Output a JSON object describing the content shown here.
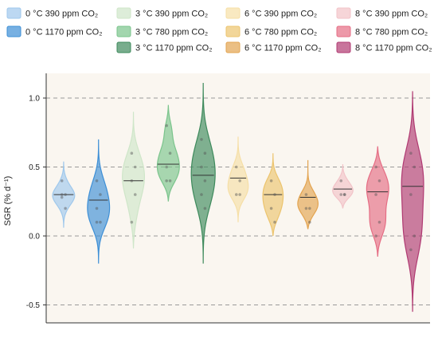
{
  "chart_data": {
    "type": "violin",
    "ylabel": "SGR (% d⁻¹)",
    "ylim": [
      -0.55,
      1.12
    ],
    "yticks": [
      {
        "value": -0.5,
        "label": "-0.5"
      },
      {
        "value": 0.0,
        "label": "0.0"
      },
      {
        "value": 0.5,
        "label": "0.5"
      },
      {
        "value": 1.0,
        "label": "1.0"
      }
    ],
    "grid": {
      "y_dashed": true
    },
    "background": "#faf6f0",
    "legend_position": "top",
    "series": [
      {
        "name": "0 °C 390 ppm CO₂",
        "color": "#9fc8ec",
        "median": 0.3,
        "range": [
          0.06,
          0.54
        ],
        "points": [
          0.3,
          0.3,
          0.28,
          0.2,
          0.4
        ]
      },
      {
        "name": "0 °C 1170 ppm CO₂",
        "color": "#3d8fd6",
        "median": 0.26,
        "range": [
          -0.2,
          0.7
        ],
        "points": [
          0.4,
          0.3,
          0.2,
          0.1,
          0.1
        ]
      },
      {
        "name": "3 °C 390 ppm CO₂",
        "color": "#cfe6c9",
        "median": 0.4,
        "range": [
          -0.09,
          0.9
        ],
        "points": [
          0.6,
          0.5,
          0.4,
          0.3,
          0.1
        ]
      },
      {
        "name": "3 °C 780 ppm CO₂",
        "color": "#7bc48c",
        "median": 0.52,
        "range": [
          0.25,
          0.95
        ],
        "points": [
          0.8,
          0.6,
          0.5,
          0.4,
          0.4
        ]
      },
      {
        "name": "3 °C 1170 ppm CO₂",
        "color": "#3e8a5c",
        "median": 0.44,
        "range": [
          -0.2,
          1.11
        ],
        "points": [
          0.7,
          0.6,
          0.5,
          0.4,
          0.3,
          0.2
        ]
      },
      {
        "name": "6 °C 390 ppm CO₂",
        "color": "#f6dfa6",
        "median": 0.42,
        "range": [
          0.1,
          0.72
        ],
        "points": [
          0.5,
          0.4,
          0.3,
          0.3
        ]
      },
      {
        "name": "6 °C 780 ppm CO₂",
        "color": "#ecc46e",
        "median": 0.3,
        "range": [
          0.0,
          0.6
        ],
        "points": [
          0.4,
          0.3,
          0.2,
          0.1
        ]
      },
      {
        "name": "6 °C 1170 ppm CO₂",
        "color": "#e3a450",
        "median": 0.28,
        "range": [
          0.05,
          0.55
        ],
        "points": [
          0.3,
          0.2,
          0.2,
          0.1
        ]
      },
      {
        "name": "8 °C 390 ppm CO₂",
        "color": "#f2c3c8",
        "median": 0.34,
        "range": [
          0.2,
          0.52
        ],
        "points": [
          0.4,
          0.3,
          0.3,
          0.3
        ]
      },
      {
        "name": "8 °C 780 ppm CO₂",
        "color": "#e56d84",
        "median": 0.32,
        "range": [
          -0.15,
          0.65
        ],
        "points": [
          0.5,
          0.4,
          0.3,
          0.1,
          0.0
        ]
      },
      {
        "name": "8 °C 1170 ppm CO₂",
        "color": "#b03a72",
        "median": 0.36,
        "range": [
          -0.55,
          1.05
        ],
        "points": [
          0.6,
          0.5,
          0.3,
          0.0,
          -0.1
        ]
      }
    ]
  }
}
